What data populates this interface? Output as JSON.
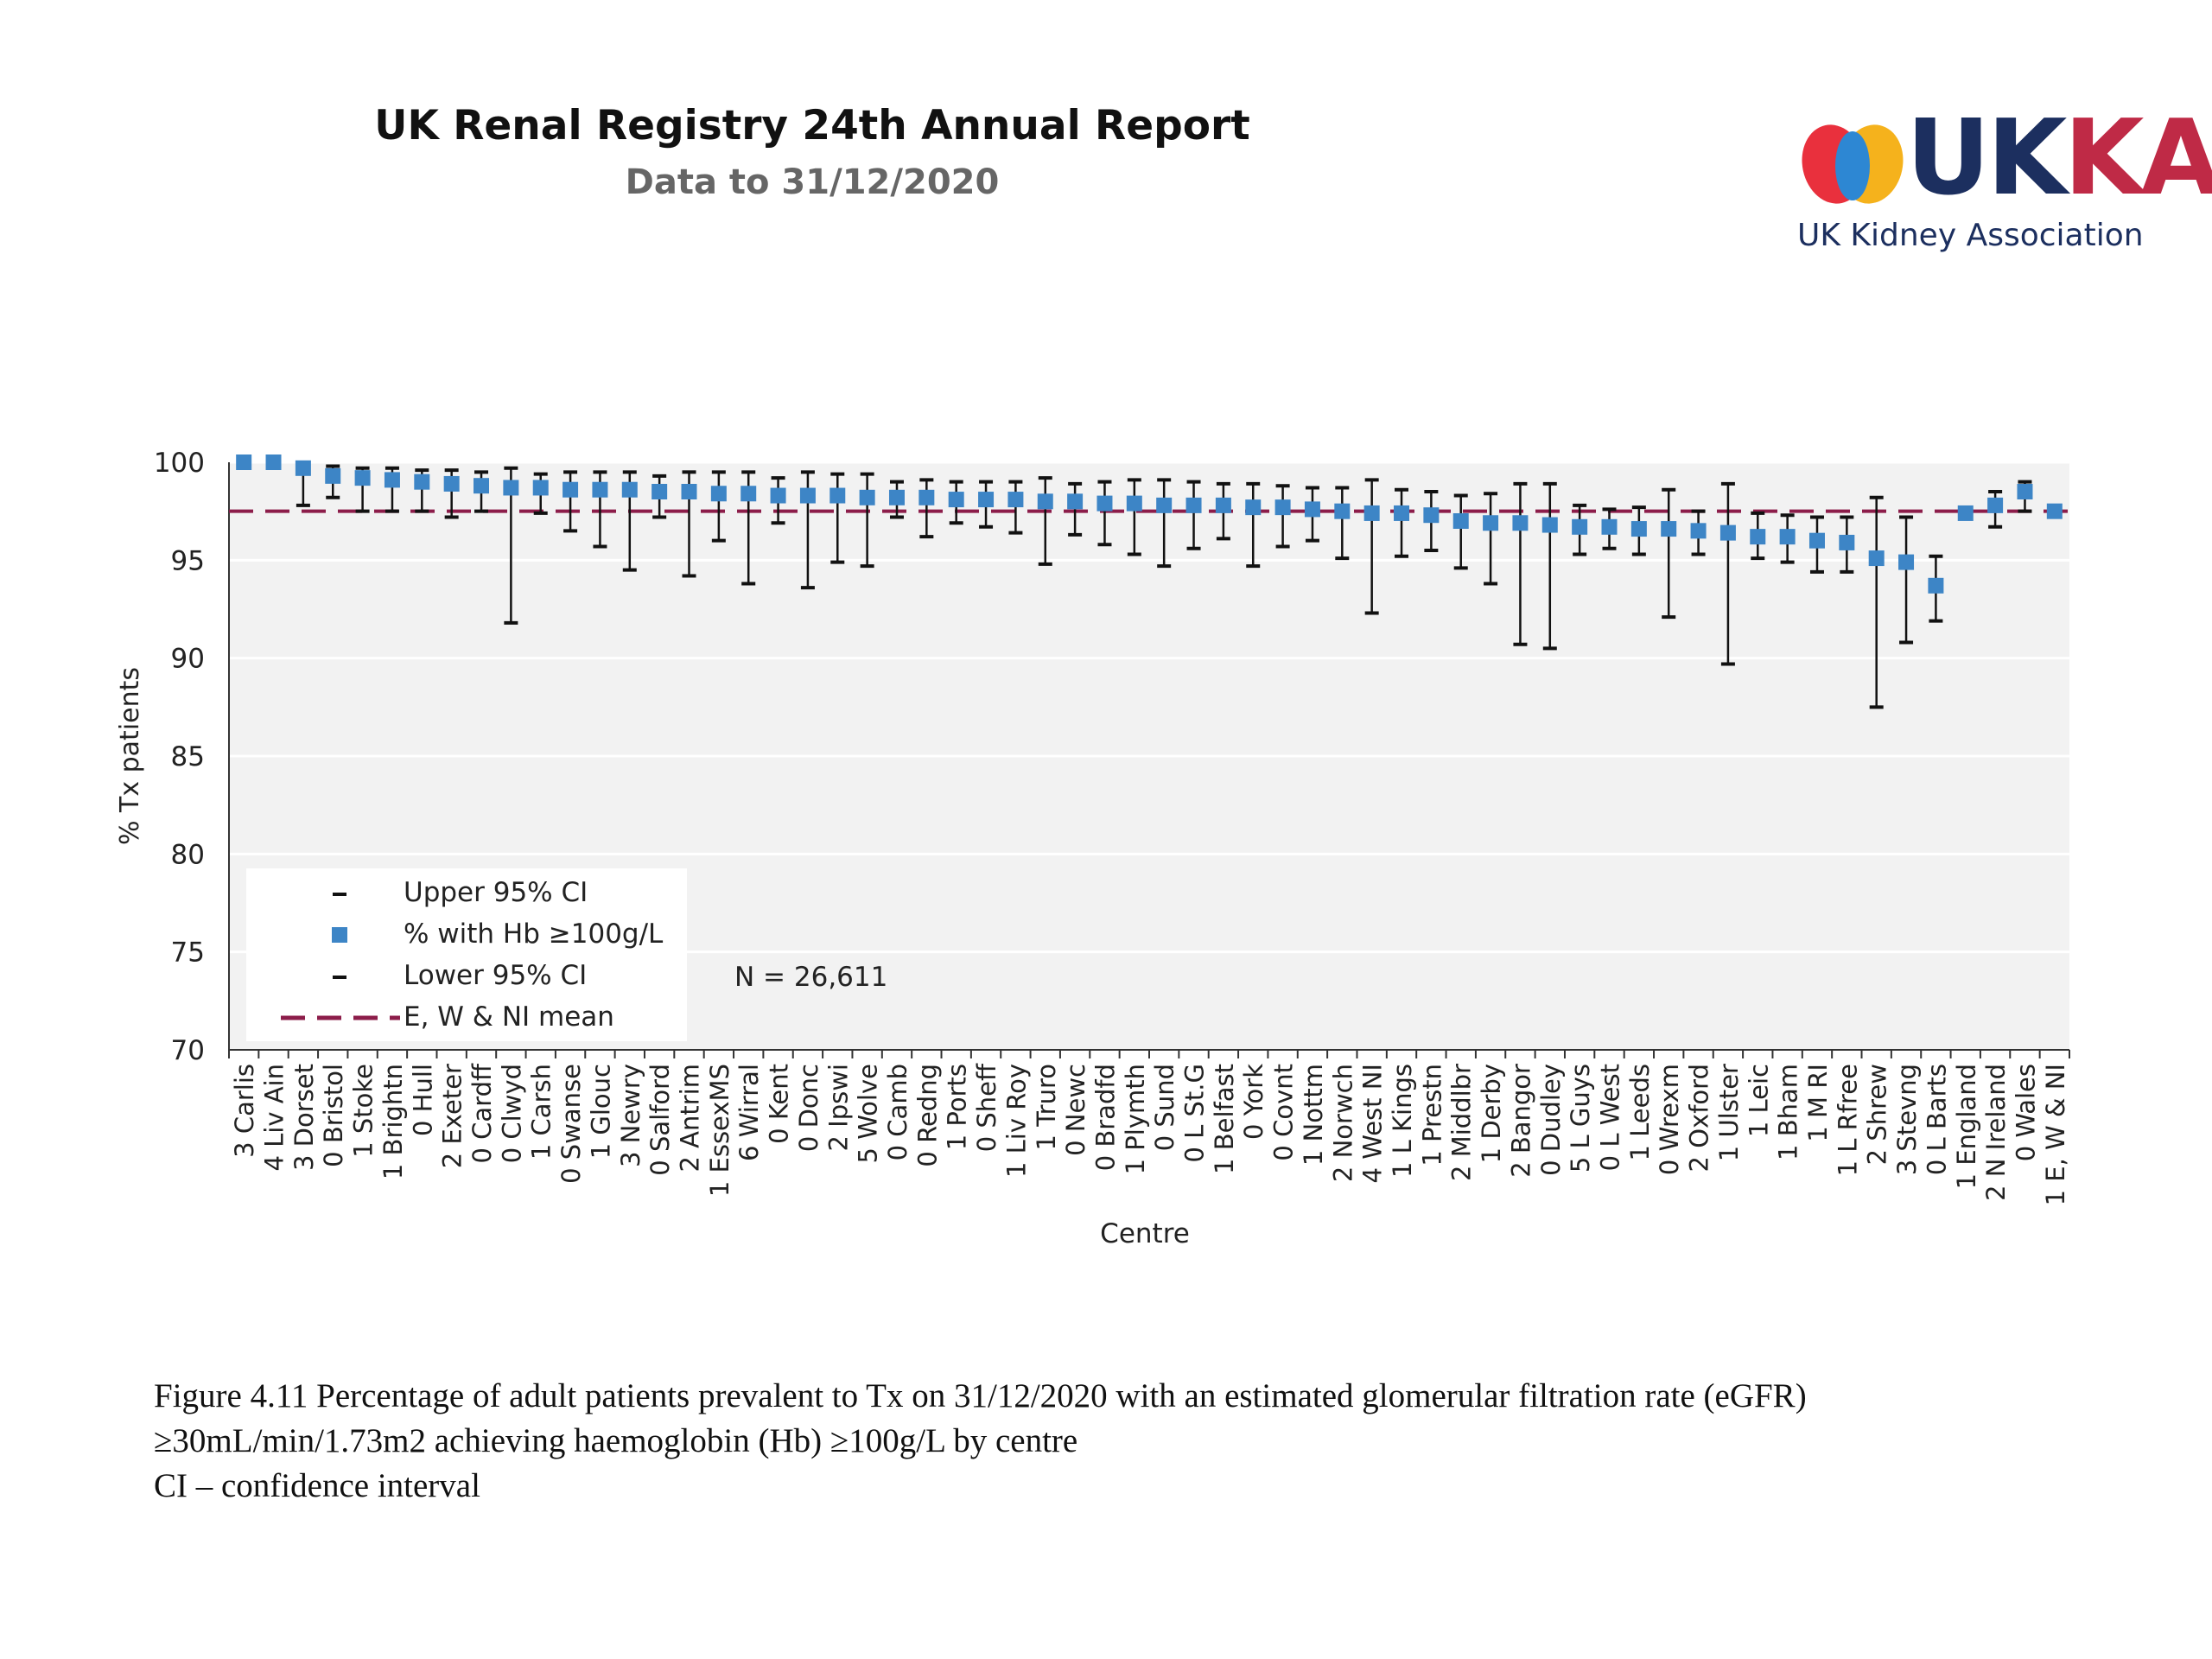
{
  "header": {
    "title": "UK Renal Registry 24th Annual Report",
    "subtitle": "Data to 31/12/2020"
  },
  "logo": {
    "letters": [
      "U",
      "K",
      "K",
      "A"
    ],
    "letter_colors": [
      "#1c2f5f",
      "#1c2f5f",
      "#bf2a46",
      "#bf2a46"
    ],
    "tagline": "UK Kidney Association",
    "mark_colors": [
      "#e9303d",
      "#f5b21c",
      "#2d87d3"
    ]
  },
  "chart_data": {
    "type": "scatter",
    "ylabel": "% Tx patients",
    "xlabel": "Centre",
    "ylim": [
      70,
      100
    ],
    "yticks": [
      70,
      75,
      80,
      85,
      90,
      95,
      100
    ],
    "grid": true,
    "legend_position": "bottom-left",
    "legend": [
      {
        "label": "Upper 95% CI",
        "marker": "dash"
      },
      {
        "label": "% with Hb ≥100g/L",
        "marker": "square"
      },
      {
        "label": "Lower 95% CI",
        "marker": "dash"
      },
      {
        "label": "E, W & NI mean",
        "marker": "dashed-line"
      }
    ],
    "annotation": "N = 26,611",
    "mean": 97.5,
    "colors": {
      "point": "#3d85c6",
      "whisker": "#111111",
      "mean": "#8c1d4a",
      "plot_bg": "#f2f2f2",
      "grid": "#ffffff"
    },
    "categories": [
      "3 Carlis",
      "4 Liv Ain",
      "3 Dorset",
      "0 Bristol",
      "1 Stoke",
      "1 Brightn",
      "0 Hull",
      "2 Exeter",
      "0 Cardff",
      "0 Clwyd",
      "1 Carsh",
      "0 Swanse",
      "1 Glouc",
      "3 Newry",
      "0 Salford",
      "2 Antrim",
      "1 EssexMS",
      "6 Wirral",
      "0 Kent",
      "0 Donc",
      "2 Ipswi",
      "5 Wolve",
      "0 Camb",
      "0 Redng",
      "1 Ports",
      "0 Sheff",
      "1 Liv Roy",
      "1 Truro",
      "0 Newc",
      "0 Bradfd",
      "1 Plymth",
      "0 Sund",
      "0 L St.G",
      "1 Belfast",
      "0 York",
      "0 Covnt",
      "1 Nottm",
      "2 Norwch",
      "4 West NI",
      "1 L Kings",
      "1 Prestn",
      "2 Middlbr",
      "1 Derby",
      "2 Bangor",
      "0 Dudley",
      "5 L Guys",
      "0 L West",
      "1 Leeds",
      "0 Wrexm",
      "2 Oxford",
      "1 Ulster",
      "1 Leic",
      "1 Bham",
      "1 M RI",
      "1 L Rfree",
      "2 Shrew",
      "3 Stevng",
      "0 L Barts",
      "1 England",
      "2 N Ireland",
      "0 Wales",
      "1 E, W & NI"
    ],
    "series": [
      {
        "name": "% with Hb ≥100g/L",
        "values": [
          100,
          100,
          99.7,
          99.3,
          99.2,
          99.1,
          99.0,
          98.9,
          98.8,
          98.7,
          98.7,
          98.6,
          98.6,
          98.6,
          98.5,
          98.5,
          98.4,
          98.4,
          98.3,
          98.3,
          98.3,
          98.2,
          98.2,
          98.2,
          98.1,
          98.1,
          98.1,
          98.0,
          98.0,
          97.9,
          97.9,
          97.8,
          97.8,
          97.8,
          97.7,
          97.7,
          97.6,
          97.5,
          97.4,
          97.4,
          97.3,
          97.0,
          96.9,
          96.9,
          96.8,
          96.7,
          96.7,
          96.6,
          96.6,
          96.5,
          96.4,
          96.2,
          96.2,
          96.0,
          95.9,
          95.1,
          94.9,
          93.7,
          97.4,
          97.8,
          98.5,
          97.5
        ]
      },
      {
        "name": "Upper 95% CI",
        "values": [
          null,
          null,
          99.9,
          99.8,
          99.7,
          99.7,
          99.6,
          99.6,
          99.5,
          99.7,
          99.4,
          99.5,
          99.5,
          99.5,
          99.3,
          99.5,
          99.5,
          99.5,
          99.2,
          99.5,
          99.4,
          99.4,
          99.0,
          99.1,
          99.0,
          99.0,
          99.0,
          99.2,
          98.9,
          99.0,
          99.1,
          99.1,
          99.0,
          98.9,
          98.9,
          98.8,
          98.7,
          98.7,
          99.1,
          98.6,
          98.5,
          98.3,
          98.4,
          98.9,
          98.9,
          97.8,
          97.6,
          97.7,
          98.6,
          97.5,
          98.9,
          97.4,
          97.3,
          97.2,
          97.2,
          98.2,
          97.2,
          95.2,
          97.5,
          98.5,
          99.0,
          97.6
        ]
      },
      {
        "name": "Lower 95% CI",
        "values": [
          null,
          null,
          97.8,
          98.2,
          97.5,
          97.5,
          97.5,
          97.2,
          97.5,
          91.8,
          97.4,
          96.5,
          95.7,
          94.5,
          97.2,
          94.2,
          96.0,
          93.8,
          96.9,
          93.6,
          94.9,
          94.7,
          97.2,
          96.2,
          96.9,
          96.7,
          96.4,
          94.8,
          96.3,
          95.8,
          95.3,
          94.7,
          95.6,
          96.1,
          94.7,
          95.7,
          96.0,
          95.1,
          92.3,
          95.2,
          95.5,
          94.6,
          93.8,
          90.7,
          90.5,
          95.3,
          95.6,
          95.3,
          92.1,
          95.3,
          89.7,
          95.1,
          94.9,
          94.4,
          94.4,
          87.5,
          90.8,
          91.9,
          97.2,
          96.7,
          97.5,
          97.3
        ]
      }
    ]
  },
  "caption": {
    "line1": "Figure 4.11 Percentage of adult patients prevalent to Tx on 31/12/2020 with an estimated glomerular filtration rate (eGFR)",
    "line2": "≥30mL/min/1.73m2 achieving haemoglobin (Hb) ≥100g/L by centre",
    "line3": "CI – confidence interval"
  }
}
